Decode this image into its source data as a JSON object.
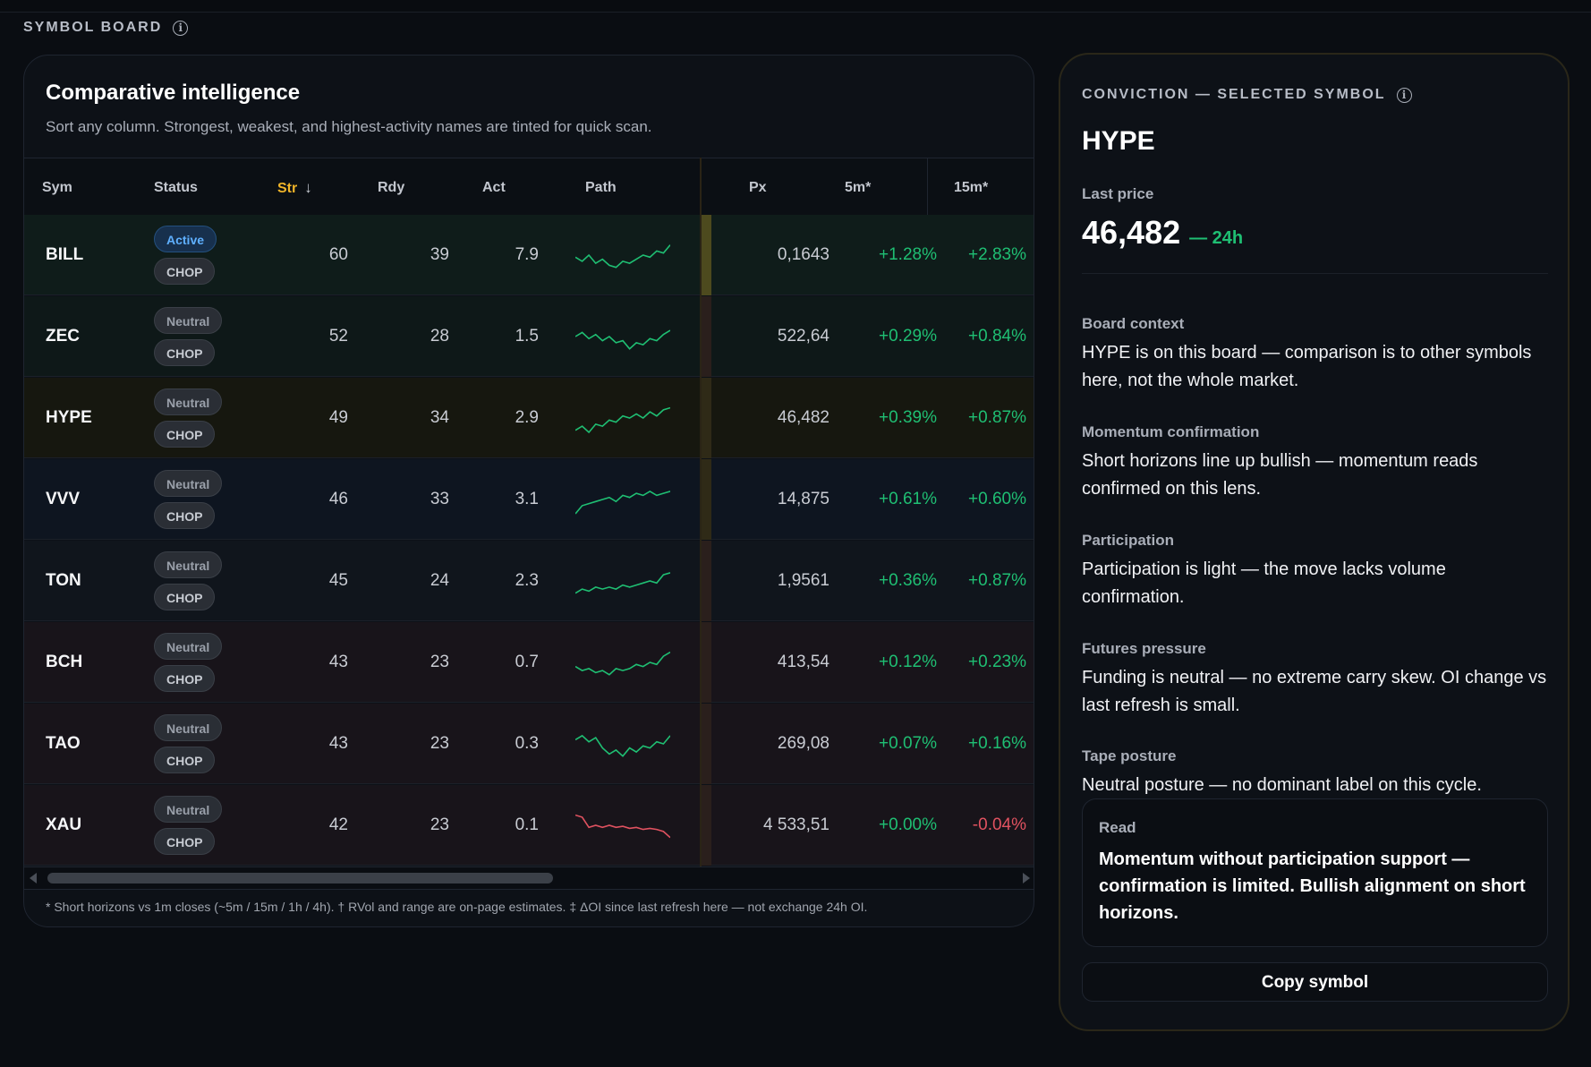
{
  "board": {
    "label": "SYMBOL BOARD"
  },
  "card": {
    "title": "Comparative intelligence",
    "subtitle": "Sort any column. Strongest, weakest, and highest-activity names are tinted for quick scan."
  },
  "table": {
    "columns": {
      "sym": "Sym",
      "status": "Status",
      "str": "Str",
      "rdy": "Rdy",
      "act": "Act",
      "path": "Path",
      "px": "Px",
      "m5": "5m*",
      "m15": "15m*"
    },
    "sorted_column": "str",
    "rows": [
      {
        "sym": "BILL",
        "status": "Active",
        "regime": "CHOP",
        "str": "60",
        "rdy": "39",
        "act": "7.9",
        "px": "0,1643",
        "m5": "+1.28%",
        "m15": "+2.83%",
        "bg": "#0f1c1a",
        "bar": "#4d4a1e",
        "trend": "up",
        "path": [
          16,
          20,
          14,
          22,
          18,
          24,
          26,
          20,
          22,
          18,
          14,
          16,
          10,
          12,
          4
        ]
      },
      {
        "sym": "ZEC",
        "status": "Neutral",
        "regime": "CHOP",
        "str": "52",
        "rdy": "28",
        "act": "1.5",
        "px": "522,64",
        "m5": "+0.29%",
        "m15": "+0.84%",
        "bg": "#0e1818",
        "bar": "#2a1f1c",
        "trend": "up",
        "path": [
          14,
          10,
          16,
          12,
          18,
          14,
          20,
          18,
          26,
          20,
          22,
          16,
          18,
          12,
          8
        ]
      },
      {
        "sym": "HYPE",
        "status": "Neutral",
        "regime": "CHOP",
        "str": "49",
        "rdy": "34",
        "act": "2.9",
        "px": "46,482",
        "m5": "+0.39%",
        "m15": "+0.87%",
        "bg": "#16170f",
        "bar": "#2f2a17",
        "trend": "up",
        "path": [
          26,
          22,
          28,
          20,
          22,
          16,
          18,
          12,
          14,
          10,
          14,
          8,
          12,
          6,
          4
        ]
      },
      {
        "sym": "VVV",
        "status": "Neutral",
        "regime": "CHOP",
        "str": "46",
        "rdy": "33",
        "act": "3.1",
        "px": "14,875",
        "m5": "+0.61%",
        "m15": "+0.60%",
        "bg": "#0e1520",
        "bar": "#2f2a17",
        "trend": "up",
        "path": [
          28,
          20,
          18,
          16,
          14,
          12,
          16,
          10,
          12,
          8,
          10,
          6,
          10,
          8,
          6
        ]
      },
      {
        "sym": "TON",
        "status": "Neutral",
        "regime": "CHOP",
        "str": "45",
        "rdy": "24",
        "act": "2.3",
        "px": "1,9561",
        "m5": "+0.36%",
        "m15": "+0.87%",
        "bg": "#10151c",
        "bar": "#2a1f1c",
        "trend": "up",
        "path": [
          26,
          22,
          24,
          20,
          22,
          20,
          22,
          18,
          20,
          18,
          16,
          14,
          16,
          8,
          6
        ]
      },
      {
        "sym": "BCH",
        "status": "Neutral",
        "regime": "CHOP",
        "str": "43",
        "rdy": "23",
        "act": "0.7",
        "px": "413,54",
        "m5": "+0.12%",
        "m15": "+0.23%",
        "bg": "#18141a",
        "bar": "#2a1f1c",
        "trend": "up",
        "path": [
          18,
          22,
          20,
          24,
          22,
          26,
          20,
          22,
          20,
          16,
          18,
          14,
          16,
          8,
          4
        ]
      },
      {
        "sym": "TAO",
        "status": "Neutral",
        "regime": "CHOP",
        "str": "43",
        "rdy": "23",
        "act": "0.3",
        "px": "269,08",
        "m5": "+0.07%",
        "m15": "+0.16%",
        "bg": "#18141a",
        "bar": "#2a1f1c",
        "trend": "up",
        "path": [
          10,
          6,
          12,
          8,
          18,
          24,
          20,
          26,
          18,
          22,
          16,
          18,
          12,
          14,
          6
        ]
      },
      {
        "sym": "XAU",
        "status": "Neutral",
        "regime": "CHOP",
        "str": "42",
        "rdy": "23",
        "act": "0.1",
        "px": "4 533,51",
        "m5": "+0.00%",
        "m15": "-0.04%",
        "bg": "#18141a",
        "bar": "#2a1f1c",
        "trend": "down",
        "path": [
          4,
          6,
          16,
          14,
          16,
          14,
          16,
          15,
          17,
          16,
          18,
          17,
          18,
          20,
          26
        ]
      }
    ]
  },
  "footnote": "* Short horizons vs 1m closes (~5m / 15m / 1h / 4h). † RVol and range are on-page estimates. ‡ ΔOI since last refresh here — not exchange 24h OI.",
  "panel": {
    "header": "CONVICTION — SELECTED SYMBOL",
    "symbol": "HYPE",
    "last_price_label": "Last price",
    "last_price": "46,482",
    "change_label": "— 24h",
    "sections": [
      {
        "title": "Board context",
        "body": "HYPE is on this board — comparison is to other symbols here, not the whole market."
      },
      {
        "title": "Momentum confirmation",
        "body": "Short horizons line up bullish — momentum reads confirmed on this lens."
      },
      {
        "title": "Participation",
        "body": "Participation is light — the move lacks volume confirmation."
      },
      {
        "title": "Futures pressure",
        "body": "Funding is neutral — no extreme carry skew. OI change vs last refresh is small."
      },
      {
        "title": "Tape posture",
        "body": "Neutral posture — no dominant label on this cycle."
      }
    ],
    "read": {
      "title": "Read",
      "body": "Momentum without participation support — confirmation is limited. Bullish alignment on short horizons."
    },
    "copy_button": "Copy symbol"
  },
  "colors": {
    "positive": "#1fbf73",
    "negative": "#e05260",
    "accent": "#f0b429",
    "active_pill": "#5fb0ff"
  },
  "icons": {
    "info": "info-circle-icon",
    "sort": "arrow-down-icon"
  }
}
